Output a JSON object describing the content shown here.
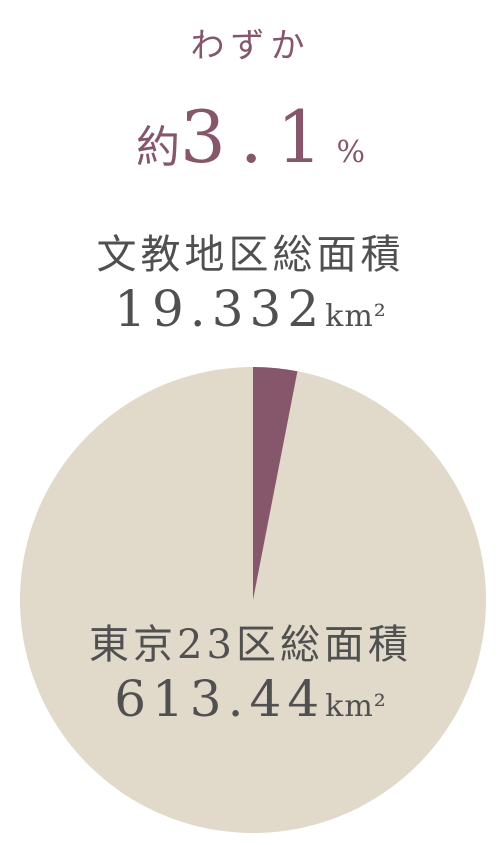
{
  "headline": {
    "lead": "わずか",
    "prefix": "約",
    "percent_value": "3.1",
    "percent_unit": "%"
  },
  "district": {
    "title": "文教地区総面積",
    "value": "19.332",
    "unit": "km²"
  },
  "tokyo": {
    "title": "東京23区総面積",
    "value": "613.44",
    "unit": "km²"
  },
  "chart_data": {
    "type": "pie",
    "title": "",
    "slices": [
      {
        "label": "文教地区総面積",
        "value": 19.332,
        "color": "#86576a"
      },
      {
        "label": "東京23区総面積",
        "value": 613.44,
        "color": "#e1d9ca"
      }
    ]
  }
}
